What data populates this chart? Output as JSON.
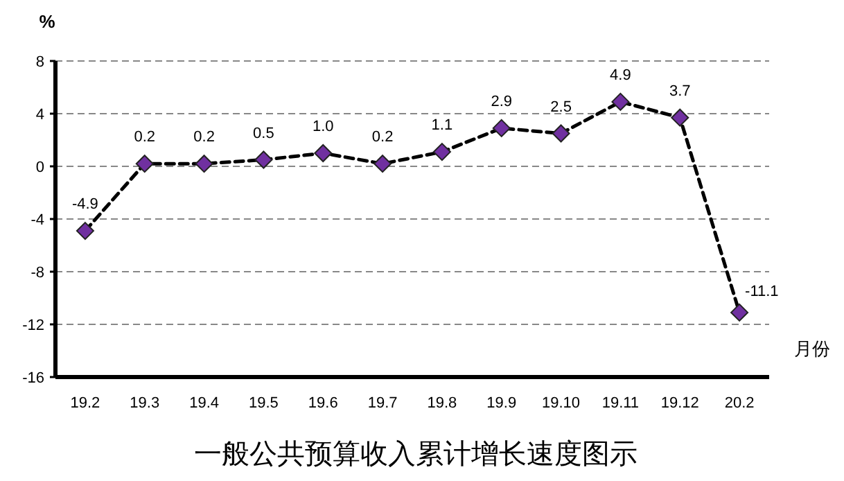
{
  "chart_data": {
    "type": "line",
    "title": "一般公共预算收入累计增长速度图示",
    "ylabel": "%",
    "xlabel": "月份",
    "categories": [
      "19.2",
      "19.3",
      "19.4",
      "19.5",
      "19.6",
      "19.7",
      "19.8",
      "19.9",
      "19.10",
      "19.11",
      "19.12",
      "20.2"
    ],
    "series": [
      {
        "color": "#7030a0",
        "values": [
          -4.9,
          0.2,
          0.2,
          0.5,
          1.0,
          0.2,
          1.1,
          2.9,
          2.5,
          4.9,
          3.7,
          -11.1
        ],
        "value_labels": [
          "-4.9",
          "0.2",
          "0.2",
          "0.5",
          "1.0",
          "0.2",
          "1.1",
          "2.9",
          "2.5",
          "4.9",
          "3.7",
          "-11.1"
        ]
      }
    ],
    "ylim": [
      -16,
      8
    ],
    "yticks": [
      -16,
      -12,
      -8,
      -4,
      0,
      4,
      8
    ],
    "grid": "y",
    "marker": "diamond",
    "line_style": "dashed"
  }
}
